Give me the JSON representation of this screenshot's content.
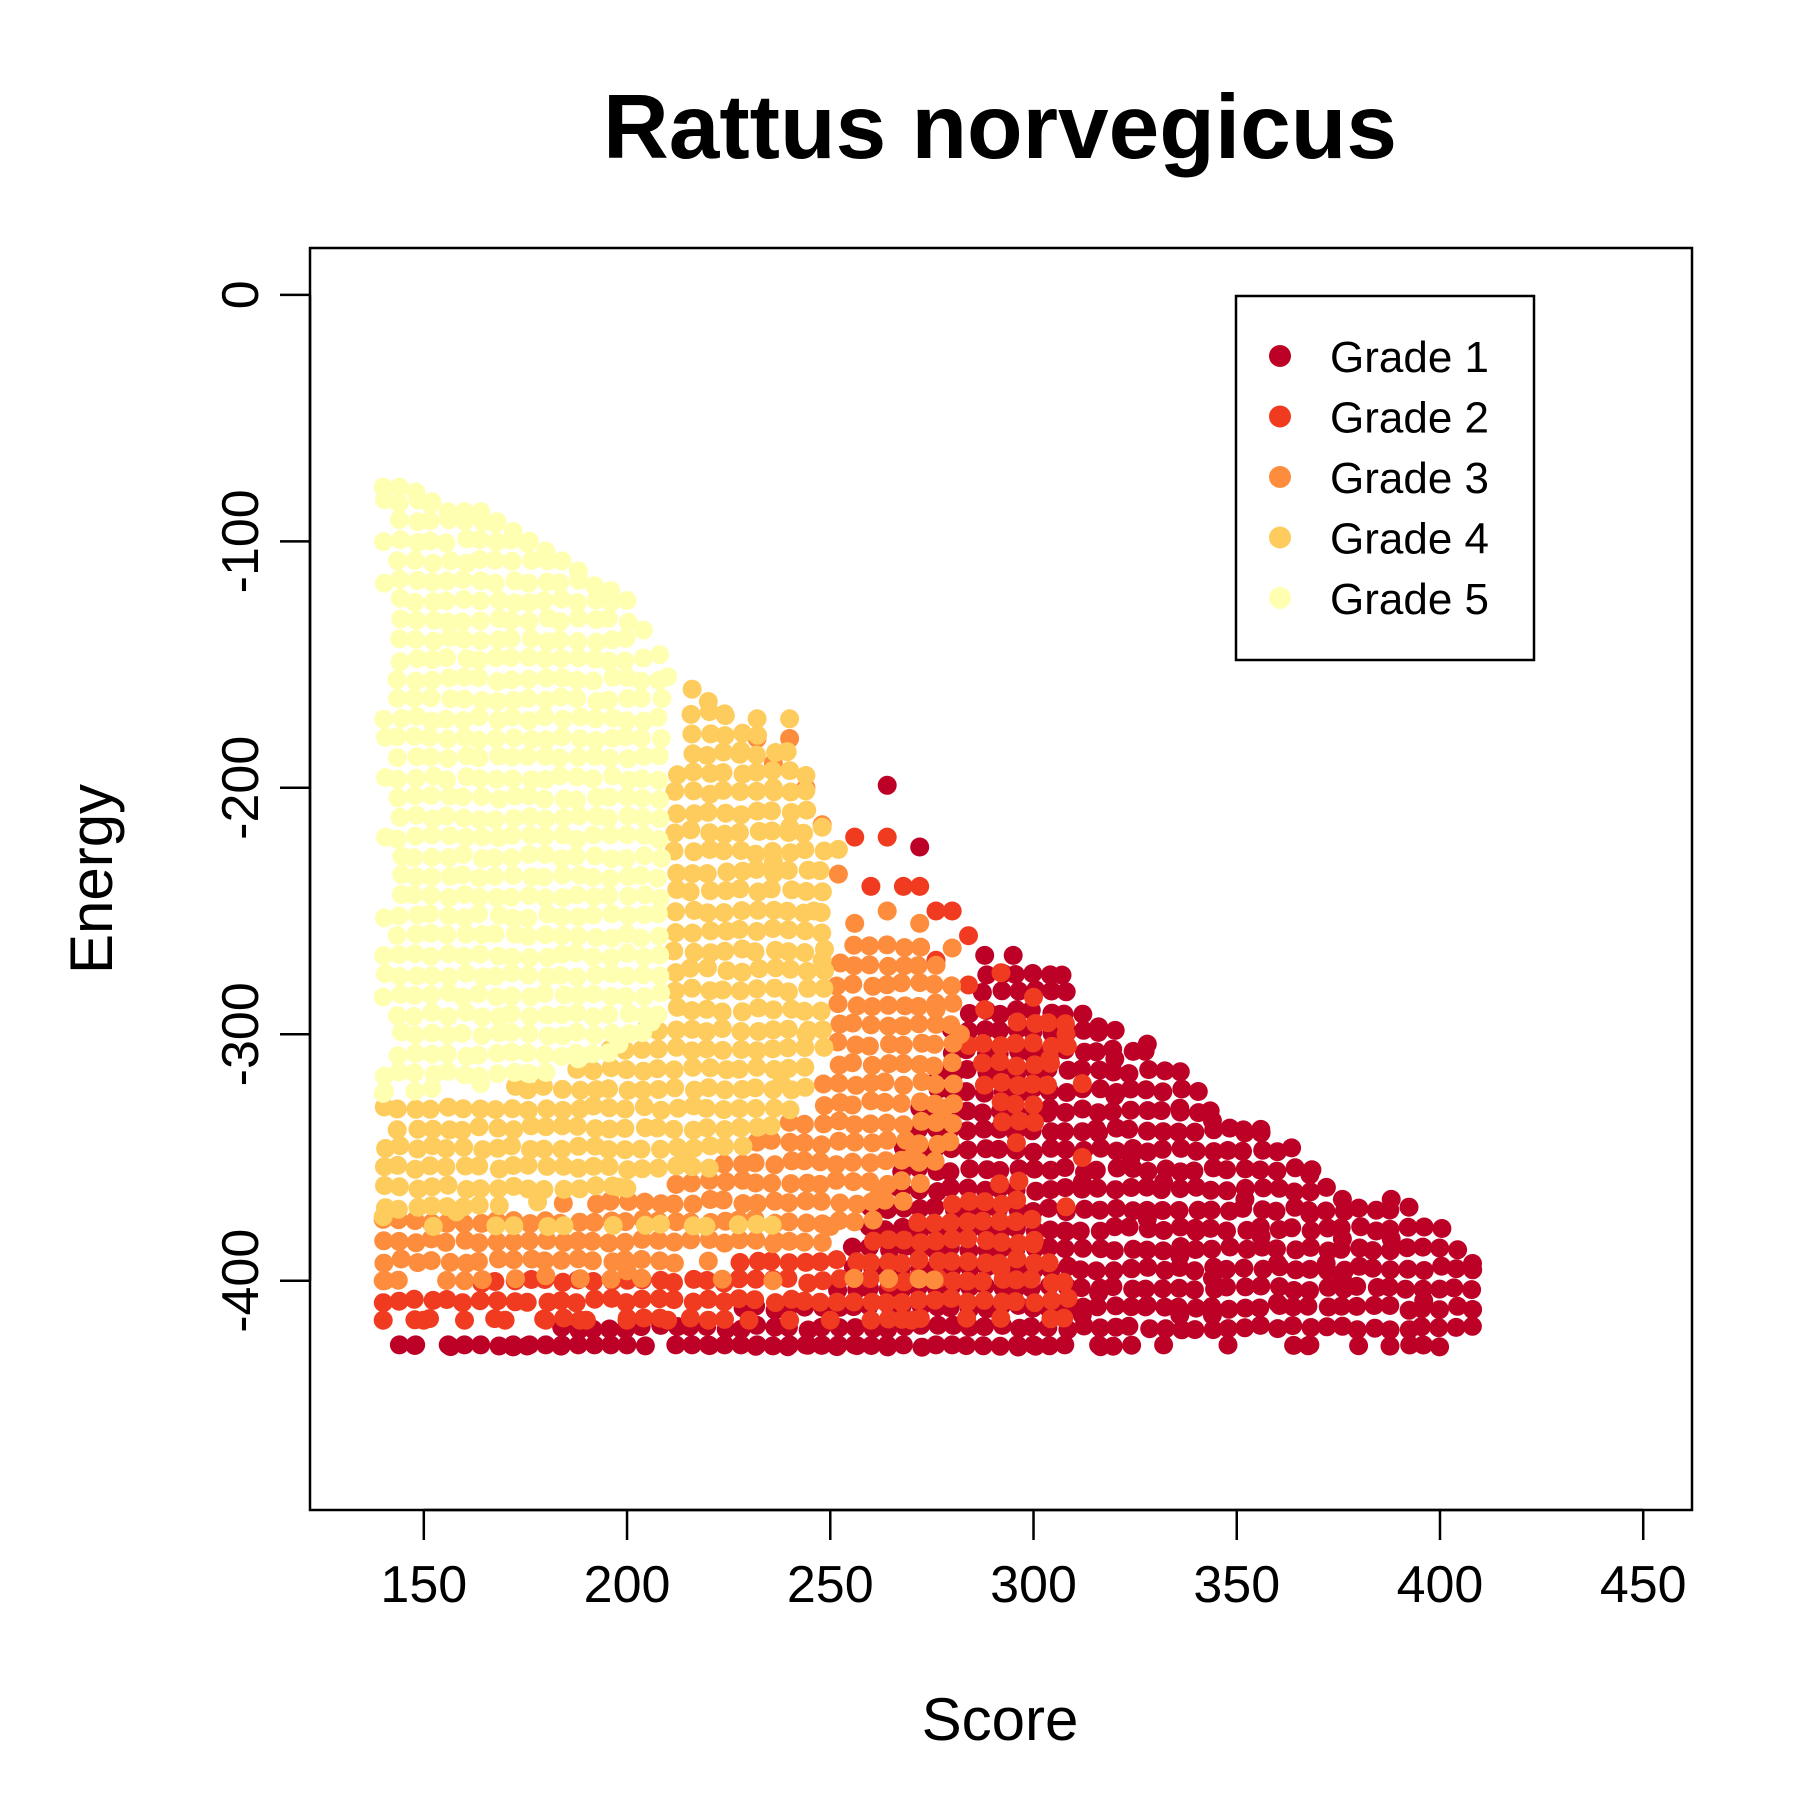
{
  "chart_data": {
    "type": "scatter",
    "title": "Rattus norvegicus",
    "xlabel": "Score",
    "ylabel": "Energy",
    "xlim": [
      122,
      462
    ],
    "ylim": [
      -493,
      19
    ],
    "xticks": [
      150,
      200,
      250,
      300,
      350,
      400,
      450
    ],
    "xtick_labels": [
      "150",
      "200",
      "250",
      "300",
      "350",
      "400",
      "450"
    ],
    "yticks": [
      0,
      -100,
      -200,
      -300,
      -400
    ],
    "ytick_labels": [
      "0",
      "-100",
      "-200",
      "-300",
      "-400"
    ],
    "grid": false,
    "legend": {
      "position": "top-right",
      "entries": [
        {
          "label": "Grade 1",
          "color": "#BD0026"
        },
        {
          "label": "Grade 2",
          "color": "#F03B20"
        },
        {
          "label": "Grade 3",
          "color": "#FD8D3C"
        },
        {
          "label": "Grade 4",
          "color": "#FECC5C"
        },
        {
          "label": "Grade 5",
          "color": "#FFFFB2"
        }
      ]
    },
    "series": [
      {
        "name": "Grade 1",
        "color": "#BD0026",
        "region": {
          "x_min": 144,
          "x_max": 410,
          "y_min": -427,
          "y_top_outline": [
            [
              144,
              -427
            ],
            [
              250,
              -405
            ],
            [
              282,
              -290
            ],
            [
              290,
              -270
            ],
            [
              305,
              -275
            ],
            [
              315,
              -295
            ],
            [
              330,
              -305
            ],
            [
              345,
              -330
            ],
            [
              360,
              -340
            ],
            [
              375,
              -365
            ],
            [
              395,
              -370
            ],
            [
              410,
              -390
            ]
          ]
        },
        "points": [
          [
            264,
            -199
          ],
          [
            272,
            -224
          ],
          [
            288,
            -268
          ],
          [
            295,
            -268
          ],
          [
            307,
            -276
          ],
          [
            316,
            -297
          ],
          [
            328,
            -304
          ],
          [
            320,
            -310
          ],
          [
            336,
            -330
          ],
          [
            344,
            -335
          ],
          [
            352,
            -340
          ],
          [
            356,
            -340
          ],
          [
            368,
            -357
          ],
          [
            376,
            -367
          ],
          [
            388,
            -367
          ],
          [
            388,
            -383
          ],
          [
            376,
            -383
          ],
          [
            376,
            -399
          ],
          [
            368,
            -373
          ],
          [
            372,
            -393
          ],
          [
            360,
            -393
          ],
          [
            356,
            -382
          ],
          [
            352,
            -367
          ],
          [
            408,
            -393
          ],
          [
            396,
            -408
          ],
          [
            368,
            -426
          ],
          [
            360,
            -409
          ],
          [
            344,
            -414
          ],
          [
            336,
            -414
          ],
          [
            332,
            -426
          ],
          [
            316,
            -426
          ],
          [
            312,
            -414
          ],
          [
            300,
            -426
          ],
          [
            296,
            -426
          ],
          [
            280,
            -426
          ],
          [
            276,
            -426
          ],
          [
            268,
            -426
          ],
          [
            264,
            -426
          ],
          [
            256,
            -426
          ],
          [
            252,
            -426
          ],
          [
            248,
            -426
          ],
          [
            244,
            -426
          ],
          [
            240,
            -426
          ],
          [
            232,
            -426
          ],
          [
            228,
            -426
          ],
          [
            224,
            -426
          ],
          [
            220,
            -426
          ],
          [
            216,
            -426
          ],
          [
            212,
            -426
          ],
          [
            200,
            -426
          ],
          [
            196,
            -426
          ],
          [
            192,
            -426
          ],
          [
            188,
            -426
          ],
          [
            184,
            -426
          ],
          [
            180,
            -426
          ],
          [
            176,
            -426
          ],
          [
            172,
            -426
          ],
          [
            164,
            -426
          ],
          [
            160,
            -426
          ],
          [
            156,
            -426
          ],
          [
            148,
            -426
          ],
          [
            144,
            -426
          ],
          [
            344,
            -399
          ],
          [
            336,
            -390
          ],
          [
            340,
            -380
          ],
          [
            328,
            -375
          ],
          [
            332,
            -360
          ],
          [
            324,
            -350
          ],
          [
            316,
            -340
          ],
          [
            320,
            -325
          ],
          [
            304,
            -330
          ],
          [
            312,
            -360
          ],
          [
            308,
            -380
          ],
          [
            296,
            -395
          ],
          [
            288,
            -410
          ],
          [
            324,
            -395
          ],
          [
            316,
            -405
          ],
          [
            328,
            -410
          ]
        ]
      },
      {
        "name": "Grade 2",
        "color": "#F03B20",
        "region": {
          "x_min": 140,
          "x_max": 312,
          "y_min": -416,
          "y_top_outline": [
            [
              140,
              -405
            ],
            [
              170,
              -398
            ],
            [
              210,
              -395
            ],
            [
              250,
              -388
            ],
            [
              270,
              -375
            ],
            [
              290,
              -360
            ],
            [
              300,
              -340
            ],
            [
              310,
              -300
            ],
            [
              312,
              -290
            ],
            [
              300,
              -295
            ],
            [
              290,
              -300
            ],
            [
              280,
              -295
            ]
          ]
        },
        "points": [
          [
            256,
            -220
          ],
          [
            264,
            -220
          ],
          [
            272,
            -240
          ],
          [
            280,
            -250
          ],
          [
            284,
            -260
          ],
          [
            276,
            -250
          ],
          [
            268,
            -240
          ],
          [
            260,
            -240
          ],
          [
            292,
            -275
          ],
          [
            300,
            -285
          ],
          [
            308,
            -300
          ],
          [
            312,
            -320
          ],
          [
            304,
            -310
          ],
          [
            296,
            -295
          ],
          [
            288,
            -290
          ],
          [
            284,
            -280
          ],
          [
            276,
            -270
          ],
          [
            312,
            -350
          ],
          [
            308,
            -370
          ],
          [
            300,
            -385
          ],
          [
            292,
            -395
          ],
          [
            140,
            -416
          ],
          [
            150,
            -416
          ],
          [
            160,
            -416
          ],
          [
            170,
            -416
          ],
          [
            180,
            -416
          ],
          [
            190,
            -416
          ],
          [
            200,
            -416
          ],
          [
            210,
            -416
          ],
          [
            220,
            -416
          ],
          [
            230,
            -416
          ],
          [
            240,
            -416
          ],
          [
            250,
            -416
          ],
          [
            260,
            -416
          ],
          [
            270,
            -416
          ]
        ]
      },
      {
        "name": "Grade 3",
        "color": "#FD8D3C",
        "region": {
          "x_min": 140,
          "x_max": 282,
          "y_min": -400,
          "y_top_outline": [
            [
              140,
              -372
            ],
            [
              180,
              -370
            ],
            [
              210,
              -360
            ],
            [
              230,
              -345
            ],
            [
              245,
              -330
            ],
            [
              250,
              -300
            ],
            [
              252,
              -270
            ],
            [
              256,
              -260
            ],
            [
              265,
              -258
            ],
            [
              275,
              -262
            ],
            [
              282,
              -275
            ],
            [
              282,
              -340
            ],
            [
              275,
              -360
            ],
            [
              260,
              -380
            ],
            [
              240,
              -388
            ],
            [
              210,
              -392
            ]
          ]
        },
        "points": [
          [
            232,
            -180
          ],
          [
            240,
            -180
          ],
          [
            236,
            -190
          ],
          [
            244,
            -200
          ],
          [
            248,
            -215
          ],
          [
            252,
            -235
          ],
          [
            256,
            -255
          ],
          [
            264,
            -250
          ],
          [
            272,
            -255
          ],
          [
            280,
            -265
          ],
          [
            276,
            -290
          ],
          [
            282,
            -300
          ],
          [
            278,
            -330
          ],
          [
            270,
            -350
          ],
          [
            262,
            -365
          ],
          [
            250,
            -378
          ],
          [
            236,
            -385
          ],
          [
            220,
            -392
          ],
          [
            200,
            -396
          ],
          [
            180,
            -398
          ],
          [
            160,
            -400
          ],
          [
            140,
            -400
          ]
        ]
      },
      {
        "name": "Grade 4",
        "color": "#FECC5C",
        "region": {
          "x_min": 140,
          "x_max": 250,
          "y_min": -378,
          "y_top_outline": [
            [
              140,
              -325
            ],
            [
              170,
              -322
            ],
            [
              190,
              -312
            ],
            [
              200,
              -300
            ],
            [
              208,
              -290
            ],
            [
              210,
              -265
            ],
            [
              212,
              -180
            ],
            [
              216,
              -168
            ],
            [
              222,
              -165
            ],
            [
              232,
              -175
            ],
            [
              240,
              -185
            ],
            [
              248,
              -210
            ],
            [
              250,
              -260
            ],
            [
              250,
              -300
            ],
            [
              246,
              -320
            ],
            [
              236,
              -340
            ],
            [
              220,
              -356
            ],
            [
              200,
              -364
            ],
            [
              170,
              -370
            ],
            [
              140,
              -372
            ]
          ]
        },
        "points": [
          [
            216,
            -160
          ],
          [
            220,
            -165
          ],
          [
            224,
            -170
          ],
          [
            232,
            -172
          ],
          [
            240,
            -172
          ],
          [
            244,
            -195
          ],
          [
            236,
            -200
          ],
          [
            228,
            -185
          ],
          [
            248,
            -216
          ],
          [
            252,
            -225
          ],
          [
            240,
            -216
          ],
          [
            236,
            -230
          ],
          [
            246,
            -250
          ],
          [
            248,
            -270
          ],
          [
            244,
            -300
          ],
          [
            238,
            -320
          ],
          [
            228,
            -338
          ],
          [
            214,
            -352
          ],
          [
            198,
            -362
          ],
          [
            178,
            -368
          ],
          [
            158,
            -372
          ],
          [
            140,
            -374
          ]
        ]
      },
      {
        "name": "Grade 5",
        "color": "#FFFFB2",
        "region": {
          "x_min": 140,
          "x_max": 210,
          "y_min": -324,
          "y_top_outline": [
            [
              140,
              -78
            ],
            [
              150,
              -80
            ],
            [
              154,
              -88
            ],
            [
              164,
              -88
            ],
            [
              170,
              -92
            ],
            [
              176,
              -98
            ],
            [
              184,
              -108
            ],
            [
              190,
              -116
            ],
            [
              196,
              -120
            ],
            [
              200,
              -128
            ],
            [
              204,
              -138
            ],
            [
              208,
              -148
            ],
            [
              210,
              -160
            ],
            [
              210,
              -290
            ],
            [
              205,
              -300
            ],
            [
              195,
              -308
            ],
            [
              180,
              -316
            ],
            [
              160,
              -322
            ],
            [
              140,
              -324
            ]
          ]
        },
        "points": [
          [
            140,
            -78
          ],
          [
            144,
            -78
          ],
          [
            148,
            -80
          ],
          [
            152,
            -84
          ],
          [
            156,
            -88
          ],
          [
            160,
            -88
          ],
          [
            164,
            -88
          ],
          [
            168,
            -92
          ],
          [
            172,
            -96
          ],
          [
            176,
            -100
          ],
          [
            180,
            -104
          ],
          [
            184,
            -108
          ],
          [
            188,
            -112
          ],
          [
            192,
            -118
          ],
          [
            196,
            -120
          ],
          [
            200,
            -124
          ],
          [
            204,
            -136
          ],
          [
            208,
            -146
          ],
          [
            210,
            -155
          ],
          [
            206,
            -295
          ],
          [
            198,
            -304
          ],
          [
            188,
            -310
          ],
          [
            176,
            -316
          ],
          [
            164,
            -320
          ],
          [
            152,
            -322
          ],
          [
            140,
            -324
          ]
        ]
      }
    ]
  }
}
